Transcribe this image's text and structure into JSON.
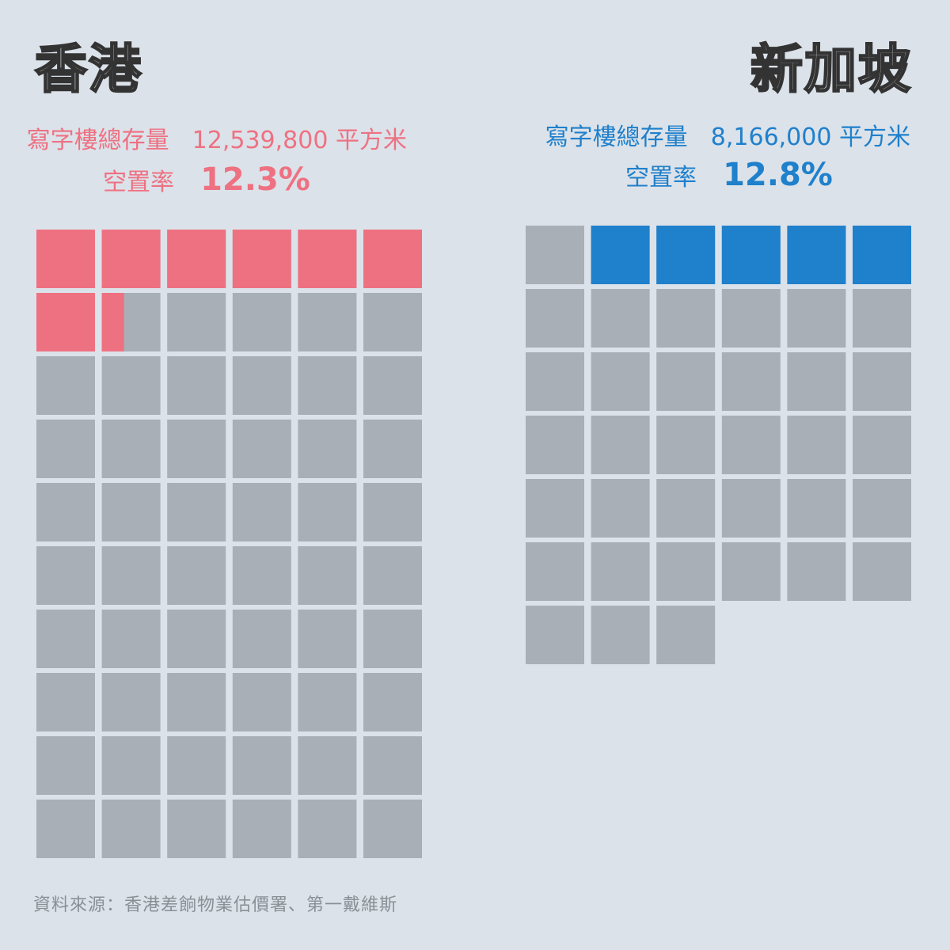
{
  "colors": {
    "background": "#dce2e9",
    "empty_cell": "#a8afb6",
    "hong_kong": "#ee7182",
    "singapore": "#1f80cc"
  },
  "hong_kong": {
    "title": "香港",
    "stock_label": "寫字樓總存量",
    "stock_value": "12,539,800",
    "stock_unit": "平方米",
    "vacancy_label": "空置率",
    "vacancy_value": "12.3%"
  },
  "singapore": {
    "title": "新加坡",
    "stock_label": "寫字樓總存量",
    "stock_value": "8,166,000",
    "stock_unit": "平方米",
    "vacancy_label": "空置率",
    "vacancy_value": "12.8%"
  },
  "source": "資料來源：香港差餉物業估價署、第一戴維斯",
  "chart_data": [
    {
      "type": "waffle",
      "title": "香港",
      "color": "#ee7182",
      "columns": 6,
      "total_units": 60,
      "total_units_note_value": 12539800,
      "vacancy_rate_percent": 12.3,
      "vacant_units": 7.38
    },
    {
      "type": "waffle",
      "title": "新加坡",
      "color": "#1f80cc",
      "columns": 6,
      "total_units": 39,
      "total_units_note_value": 8166000,
      "vacancy_rate_percent": 12.8,
      "vacant_units": 5,
      "leading_empty_units": 1
    }
  ]
}
